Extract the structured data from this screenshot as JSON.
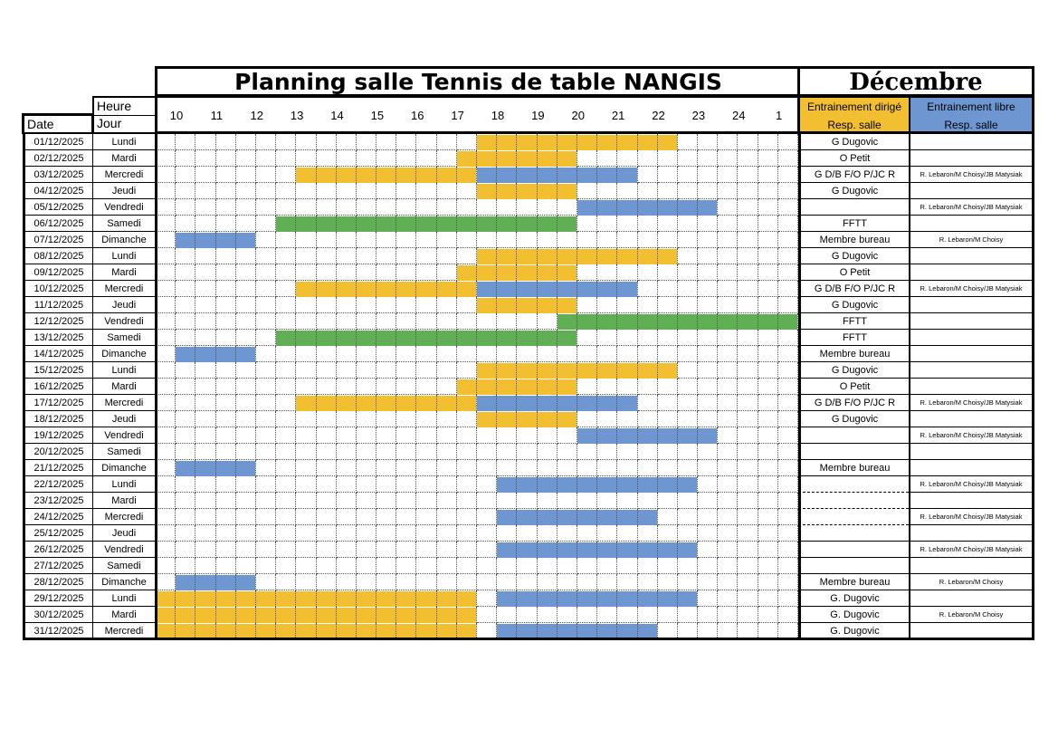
{
  "title": "Planning salle Tennis de table NANGIS",
  "month": "Décembre",
  "headers": {
    "heure": "Heure",
    "jour": "Jour",
    "date": "Date",
    "dirige_line1": "Entrainement dirigé",
    "dirige_line2": "Resp. salle",
    "libre_line1": "Entrainement libre",
    "libre_line2": "Resp. salle"
  },
  "hours": [
    "10",
    "11",
    "12",
    "13",
    "14",
    "15",
    "16",
    "17",
    "18",
    "19",
    "20",
    "21",
    "22",
    "23",
    "24",
    "1"
  ],
  "grid_range_hours": [
    10,
    26
  ],
  "colors": {
    "dirige": "#F2BF30",
    "libre": "#6E97D2",
    "fftt": "#60AF55"
  },
  "rows": [
    {
      "date": "01/12/2025",
      "jour": "Lundi",
      "dirige": "G Dugovic",
      "libre": "",
      "slots": [
        [
          18,
          23,
          "dirige"
        ]
      ]
    },
    {
      "date": "02/12/2025",
      "jour": "Mardi",
      "dirige": "O Petit",
      "libre": "",
      "slots": [
        [
          17.5,
          20.5,
          "dirige"
        ]
      ]
    },
    {
      "date": "03/12/2025",
      "jour": "Mercredi",
      "dirige": "G D/B F/O P/JC R",
      "libre": "R. Lebaron/M Choisy/JB Matysiak",
      "slots": [
        [
          13.5,
          18,
          "dirige"
        ],
        [
          18,
          22,
          "libre"
        ]
      ]
    },
    {
      "date": "04/12/2025",
      "jour": "Jeudi",
      "dirige": "G Dugovic",
      "libre": "",
      "slots": [
        [
          18,
          20.5,
          "dirige"
        ]
      ]
    },
    {
      "date": "05/12/2025",
      "jour": "Vendredi",
      "dirige": "",
      "libre": "R. Lebaron/M Choisy/JB Matysiak",
      "slots": [
        [
          20.5,
          24,
          "libre"
        ]
      ]
    },
    {
      "date": "06/12/2025",
      "jour": "Samedi",
      "dirige": "FFTT",
      "libre": "",
      "slots": [
        [
          13,
          20.5,
          "fftt"
        ]
      ]
    },
    {
      "date": "07/12/2025",
      "jour": "Dimanche",
      "dirige": "Membre bureau",
      "libre": "R. Lebaron/M Choisy",
      "slots": [
        [
          10.5,
          12.5,
          "libre"
        ]
      ]
    },
    {
      "date": "08/12/2025",
      "jour": "Lundi",
      "dirige": "G Dugovic",
      "libre": "",
      "slots": [
        [
          18,
          23,
          "dirige"
        ]
      ]
    },
    {
      "date": "09/12/2025",
      "jour": "Mardi",
      "dirige": "O Petit",
      "libre": "",
      "slots": [
        [
          17.5,
          20.5,
          "dirige"
        ]
      ]
    },
    {
      "date": "10/12/2025",
      "jour": "Mercredi",
      "dirige": "G D/B F/O P/JC R",
      "libre": "R. Lebaron/M Choisy/JB Matysiak",
      "slots": [
        [
          13.5,
          18,
          "dirige"
        ],
        [
          18,
          22,
          "libre"
        ]
      ]
    },
    {
      "date": "11/12/2025",
      "jour": "Jeudi",
      "dirige": "G Dugovic",
      "libre": "",
      "slots": [
        [
          18,
          20.5,
          "dirige"
        ]
      ]
    },
    {
      "date": "12/12/2025",
      "jour": "Vendredi",
      "dirige": "FFTT",
      "libre": "",
      "slots": [
        [
          20,
          26,
          "fftt"
        ]
      ]
    },
    {
      "date": "13/12/2025",
      "jour": "Samedi",
      "dirige": "FFTT",
      "libre": "",
      "slots": [
        [
          13,
          20.5,
          "fftt"
        ]
      ]
    },
    {
      "date": "14/12/2025",
      "jour": "Dimanche",
      "dirige": "Membre bureau",
      "libre": "",
      "slots": [
        [
          10.5,
          12.5,
          "libre"
        ]
      ]
    },
    {
      "date": "15/12/2025",
      "jour": "Lundi",
      "dirige": "G Dugovic",
      "libre": "",
      "slots": [
        [
          18,
          23,
          "dirige"
        ]
      ]
    },
    {
      "date": "16/12/2025",
      "jour": "Mardi",
      "dirige": "O Petit",
      "libre": "",
      "slots": [
        [
          17.5,
          20.5,
          "dirige"
        ]
      ]
    },
    {
      "date": "17/12/2025",
      "jour": "Mercredi",
      "dirige": "G D/B F/O P/JC R",
      "libre": "R. Lebaron/M Choisy/JB Matysiak",
      "slots": [
        [
          13.5,
          18,
          "dirige"
        ],
        [
          18,
          22,
          "libre"
        ]
      ]
    },
    {
      "date": "18/12/2025",
      "jour": "Jeudi",
      "dirige": "G Dugovic",
      "libre": "",
      "slots": [
        [
          18,
          20.5,
          "dirige"
        ]
      ]
    },
    {
      "date": "19/12/2025",
      "jour": "Vendredi",
      "dirige": "",
      "libre": "R. Lebaron/M Choisy/JB Matysiak",
      "slots": [
        [
          20.5,
          24,
          "libre"
        ]
      ]
    },
    {
      "date": "20/12/2025",
      "jour": "Samedi",
      "dirige": "",
      "libre": "",
      "slots": []
    },
    {
      "date": "21/12/2025",
      "jour": "Dimanche",
      "dirige": "Membre bureau",
      "libre": "",
      "slots": [
        [
          10.5,
          12.5,
          "libre"
        ]
      ]
    },
    {
      "date": "22/12/2025",
      "jour": "Lundi",
      "dirige": "",
      "libre": "R. Lebaron/M Choisy/JB Matysiak",
      "slots": [
        [
          18.5,
          23.5,
          "libre"
        ]
      ],
      "dashed": true
    },
    {
      "date": "23/12/2025",
      "jour": "Mardi",
      "dirige": "",
      "libre": "",
      "slots": [],
      "dashed": true
    },
    {
      "date": "24/12/2025",
      "jour": "Mercredi",
      "dirige": "",
      "libre": "R. Lebaron/M Choisy/JB Matysiak",
      "slots": [
        [
          18.5,
          22.5,
          "libre"
        ]
      ],
      "dashed": true
    },
    {
      "date": "25/12/2025",
      "jour": "Jeudi",
      "dirige": "",
      "libre": "",
      "slots": []
    },
    {
      "date": "26/12/2025",
      "jour": "Vendredi",
      "dirige": "",
      "libre": "R. Lebaron/M Choisy/JB Matysiak",
      "slots": [
        [
          18.5,
          23.5,
          "libre"
        ]
      ]
    },
    {
      "date": "27/12/2025",
      "jour": "Samedi",
      "dirige": "",
      "libre": "",
      "slots": []
    },
    {
      "date": "28/12/2025",
      "jour": "Dimanche",
      "dirige": "Membre bureau",
      "libre": "R. Lebaron/M Choisy",
      "slots": [
        [
          10.5,
          12.5,
          "libre"
        ]
      ]
    },
    {
      "date": "29/12/2025",
      "jour": "Lundi",
      "dirige": "G. Dugovic",
      "libre": "",
      "slots": [
        [
          10,
          18,
          "dirige"
        ],
        [
          18.5,
          23.5,
          "libre"
        ]
      ]
    },
    {
      "date": "30/12/2025",
      "jour": "Mardi",
      "dirige": "G. Dugovic",
      "libre": "R. Lebaron/M Choisy",
      "slots": [
        [
          10,
          18,
          "dirige"
        ]
      ]
    },
    {
      "date": "31/12/2025",
      "jour": "Mercredi",
      "dirige": "G. Dugovic",
      "libre": "",
      "slots": [
        [
          10,
          18,
          "dirige"
        ],
        [
          18.5,
          22.5,
          "libre"
        ]
      ]
    }
  ]
}
